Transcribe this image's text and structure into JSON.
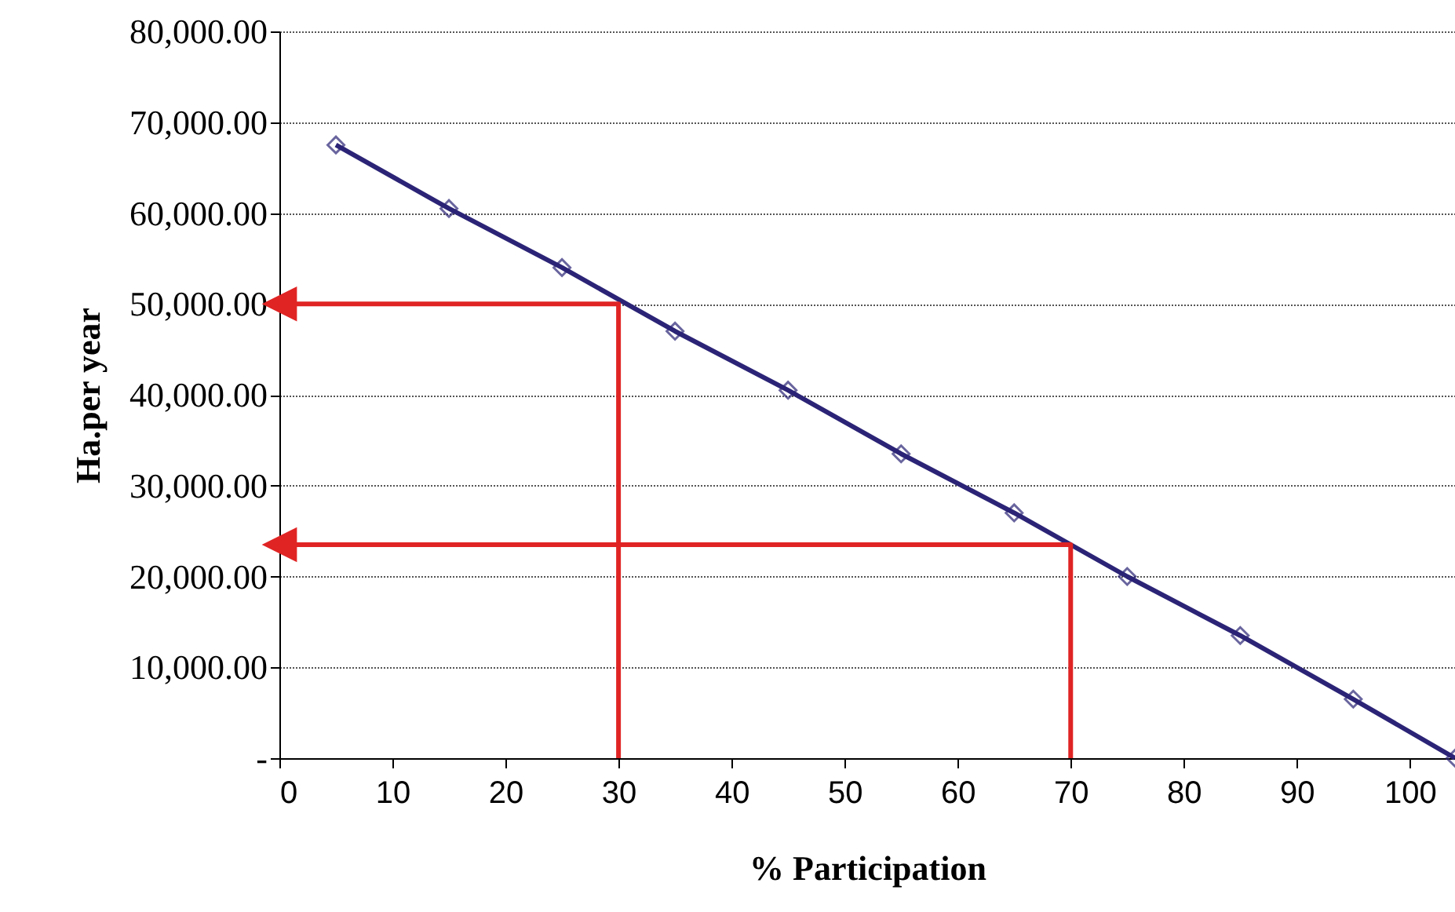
{
  "chart_data": {
    "type": "line",
    "xlabel": "% Participation",
    "ylabel": "Ha.per year",
    "xlim": [
      0,
      104
    ],
    "xticks": [
      0,
      10,
      20,
      30,
      40,
      50,
      60,
      70,
      80,
      90,
      100
    ],
    "ylim": [
      0,
      80000
    ],
    "yticks": [
      {
        "value": 0,
        "label": "-"
      },
      {
        "value": 10000,
        "label": "10,000.00"
      },
      {
        "value": 20000,
        "label": "20,000.00"
      },
      {
        "value": 30000,
        "label": "30,000.00"
      },
      {
        "value": 40000,
        "label": "40,000.00"
      },
      {
        "value": 50000,
        "label": "50,000.00"
      },
      {
        "value": 60000,
        "label": "60,000.00"
      },
      {
        "value": 70000,
        "label": "70,000.00"
      },
      {
        "value": 80000,
        "label": "80,000.00"
      }
    ],
    "grid": "y",
    "series": [
      {
        "color": "#2b2476",
        "marker": "diamond",
        "x": [
          5,
          15,
          25,
          35,
          45,
          55,
          65,
          75,
          85,
          95,
          104
        ],
        "values": [
          67500,
          60500,
          54000,
          47000,
          40500,
          33500,
          27000,
          20000,
          13500,
          6500,
          0
        ]
      },
      {
        "color": "#e02424",
        "marker": "none",
        "x": [
          30,
          30,
          0
        ],
        "values": [
          0,
          50000,
          50000
        ]
      },
      {
        "color": "#e02424",
        "marker": "none",
        "x": [
          70,
          70,
          0
        ],
        "values": [
          0,
          23500,
          23500
        ]
      }
    ]
  }
}
